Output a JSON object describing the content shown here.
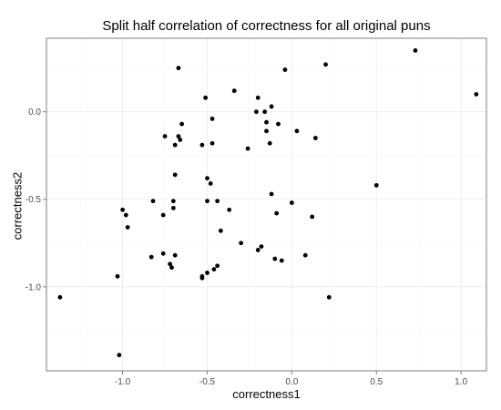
{
  "chart_data": {
    "type": "scatter",
    "title": "Split half correlation of correctness for all original puns",
    "xlabel": "correctness1",
    "ylabel": "correctness2",
    "xlim": [
      -1.45,
      1.15
    ],
    "ylim": [
      -1.48,
      0.42
    ],
    "x_ticks": [
      -1.0,
      -0.5,
      0.0,
      0.5,
      1.0
    ],
    "x_tick_labels": [
      "-1.0",
      "-0.5",
      "0.0",
      "0.5",
      "1.0"
    ],
    "y_ticks": [
      -1.0,
      -0.5,
      0.0
    ],
    "y_tick_labels": [
      "-1.0",
      "-0.5",
      "0.0"
    ],
    "grid": true,
    "point_color": "#000000",
    "panel_border_color": "#7f7f7f",
    "major_grid_color": "#ebebeb",
    "minor_grid_color": "#f5f5f5",
    "points": [
      {
        "x": -1.37,
        "y": -1.06
      },
      {
        "x": -1.03,
        "y": -0.94
      },
      {
        "x": -1.02,
        "y": -1.39
      },
      {
        "x": -1.0,
        "y": -0.56
      },
      {
        "x": -0.98,
        "y": -0.59
      },
      {
        "x": -0.97,
        "y": -0.66
      },
      {
        "x": -0.83,
        "y": -0.83
      },
      {
        "x": -0.82,
        "y": -0.51
      },
      {
        "x": -0.76,
        "y": -0.81
      },
      {
        "x": -0.76,
        "y": -0.59
      },
      {
        "x": -0.75,
        "y": -0.14
      },
      {
        "x": -0.72,
        "y": -0.87
      },
      {
        "x": -0.71,
        "y": -0.89
      },
      {
        "x": -0.7,
        "y": -0.55
      },
      {
        "x": -0.7,
        "y": -0.51
      },
      {
        "x": -0.69,
        "y": -0.82
      },
      {
        "x": -0.69,
        "y": -0.36
      },
      {
        "x": -0.69,
        "y": -0.19
      },
      {
        "x": -0.67,
        "y": -0.14
      },
      {
        "x": -0.67,
        "y": 0.25
      },
      {
        "x": -0.66,
        "y": -0.16
      },
      {
        "x": -0.65,
        "y": -0.07
      },
      {
        "x": -0.53,
        "y": -0.94
      },
      {
        "x": -0.53,
        "y": -0.95
      },
      {
        "x": -0.53,
        "y": -0.19
      },
      {
        "x": -0.51,
        "y": 0.08
      },
      {
        "x": -0.5,
        "y": -0.38
      },
      {
        "x": -0.5,
        "y": -0.51
      },
      {
        "x": -0.5,
        "y": -0.92
      },
      {
        "x": -0.48,
        "y": -0.41
      },
      {
        "x": -0.47,
        "y": -0.04
      },
      {
        "x": -0.47,
        "y": -0.18
      },
      {
        "x": -0.46,
        "y": -0.9
      },
      {
        "x": -0.44,
        "y": -0.88
      },
      {
        "x": -0.44,
        "y": -0.51
      },
      {
        "x": -0.42,
        "y": -0.68
      },
      {
        "x": -0.37,
        "y": -0.56
      },
      {
        "x": -0.34,
        "y": 0.12
      },
      {
        "x": -0.3,
        "y": -0.75
      },
      {
        "x": -0.26,
        "y": -0.21
      },
      {
        "x": -0.21,
        "y": 0.0
      },
      {
        "x": -0.2,
        "y": 0.08
      },
      {
        "x": -0.2,
        "y": -0.79
      },
      {
        "x": -0.18,
        "y": -0.77
      },
      {
        "x": -0.16,
        "y": 0.0
      },
      {
        "x": -0.15,
        "y": -0.06
      },
      {
        "x": -0.15,
        "y": -0.11
      },
      {
        "x": -0.13,
        "y": -0.18
      },
      {
        "x": -0.12,
        "y": 0.03
      },
      {
        "x": -0.12,
        "y": -0.47
      },
      {
        "x": -0.1,
        "y": -0.84
      },
      {
        "x": -0.09,
        "y": -0.58
      },
      {
        "x": -0.08,
        "y": -0.07
      },
      {
        "x": -0.06,
        "y": -0.85
      },
      {
        "x": -0.04,
        "y": 0.24
      },
      {
        "x": 0.0,
        "y": -0.52
      },
      {
        "x": 0.03,
        "y": -0.11
      },
      {
        "x": 0.08,
        "y": -0.82
      },
      {
        "x": 0.12,
        "y": -0.6
      },
      {
        "x": 0.14,
        "y": -0.15
      },
      {
        "x": 0.2,
        "y": 0.27
      },
      {
        "x": 0.22,
        "y": -1.06
      },
      {
        "x": 0.5,
        "y": -0.42
      },
      {
        "x": 0.73,
        "y": 0.35
      },
      {
        "x": 1.09,
        "y": 0.1
      }
    ]
  }
}
